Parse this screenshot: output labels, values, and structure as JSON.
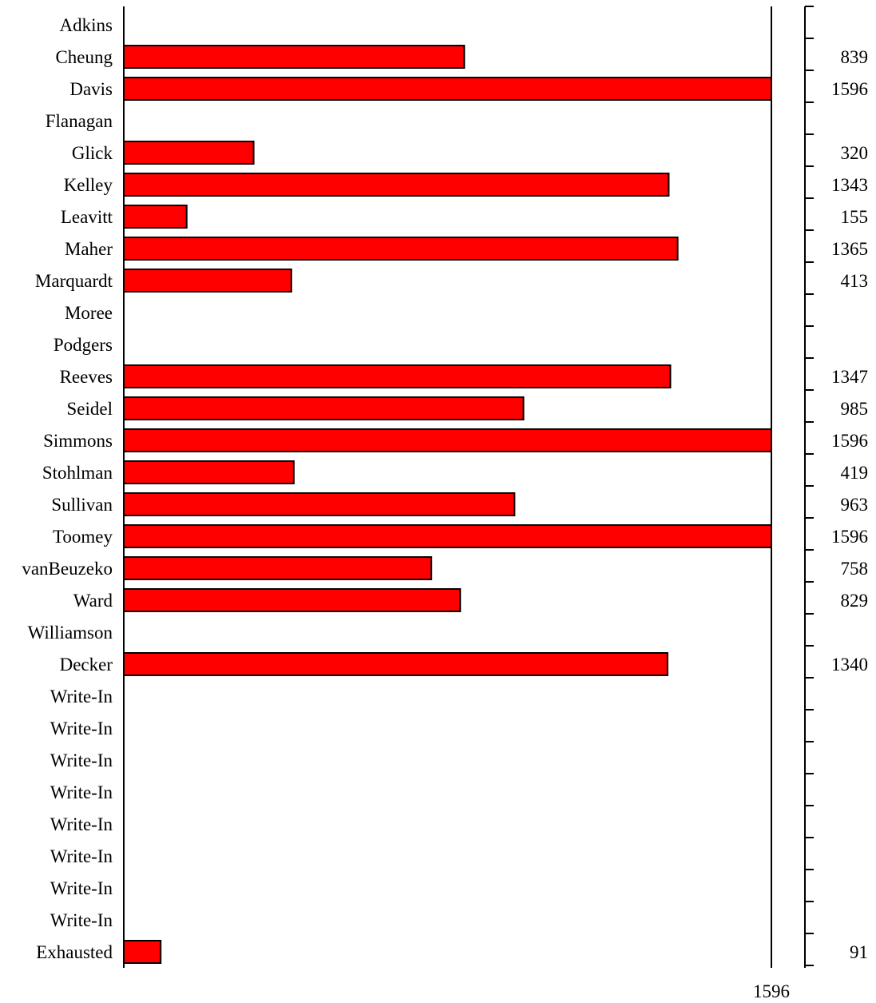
{
  "chart_data": {
    "type": "bar",
    "orientation": "horizontal",
    "bar_color": "#ff0000",
    "bar_edge_color": "#000000",
    "categories": [
      "Adkins",
      "Cheung",
      "Davis",
      "Flanagan",
      "Glick",
      "Kelley",
      "Leavitt",
      "Maher",
      "Marquardt",
      "Moree",
      "Podgers",
      "Reeves",
      "Seidel",
      "Simmons",
      "Stohlman",
      "Sullivan",
      "Toomey",
      "vanBeuzeko",
      "Ward",
      "Williamson",
      "Decker",
      "Write-In",
      "Write-In",
      "Write-In",
      "Write-In",
      "Write-In",
      "Write-In",
      "Write-In",
      "Write-In",
      "Exhausted"
    ],
    "values": [
      0,
      839,
      1596,
      0,
      320,
      1343,
      155,
      1365,
      413,
      0,
      0,
      1347,
      985,
      1596,
      419,
      963,
      1596,
      758,
      829,
      0,
      1340,
      0,
      0,
      0,
      0,
      0,
      0,
      0,
      0,
      91
    ],
    "value_labels": [
      "",
      "839",
      "1596",
      "",
      "320",
      "1343",
      "155",
      "1365",
      "413",
      "",
      "",
      "1347",
      "985",
      "1596",
      "419",
      "963",
      "1596",
      "758",
      "829",
      "",
      "1340",
      "",
      "",
      "",
      "",
      "",
      "",
      "",
      "",
      "91"
    ],
    "xlim": [
      0,
      1596
    ],
    "threshold": 1596,
    "threshold_label": "1596",
    "grid": false,
    "legend": "none"
  }
}
